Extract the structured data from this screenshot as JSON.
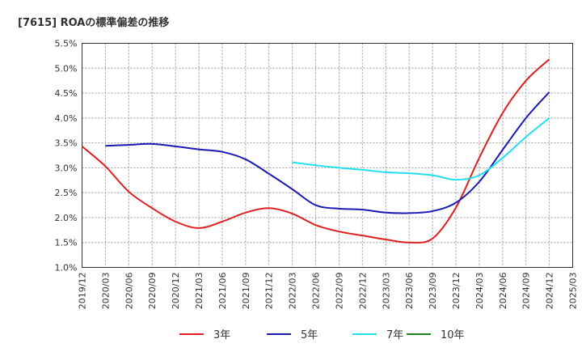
{
  "chart_data": {
    "type": "line",
    "title": "[7615]  ROAの標準偏差の推移",
    "xlabel": "",
    "ylabel": "",
    "x_ticks": [
      "2019/12",
      "2020/03",
      "2020/06",
      "2020/09",
      "2020/12",
      "2021/03",
      "2021/06",
      "2021/09",
      "2021/12",
      "2022/03",
      "2022/06",
      "2022/09",
      "2022/12",
      "2023/03",
      "2023/06",
      "2023/09",
      "2023/12",
      "2024/03",
      "2024/06",
      "2024/09",
      "2024/12",
      "2025/03"
    ],
    "y_ticks": [
      "1.0%",
      "1.5%",
      "2.0%",
      "2.5%",
      "3.0%",
      "3.5%",
      "4.0%",
      "4.5%",
      "5.0%",
      "5.5%"
    ],
    "ylim": [
      1.0,
      5.5
    ],
    "grid": true,
    "legend_position": "bottom",
    "series": [
      {
        "name": "3年",
        "color": "#e02020",
        "x": [
          "2019/12",
          "2020/03",
          "2020/06",
          "2020/09",
          "2020/12",
          "2021/03",
          "2021/06",
          "2021/09",
          "2021/12",
          "2022/03",
          "2022/06",
          "2022/09",
          "2022/12",
          "2023/03",
          "2023/06",
          "2023/09",
          "2023/12",
          "2024/03",
          "2024/06",
          "2024/09",
          "2024/12"
        ],
        "values": [
          3.43,
          3.03,
          2.52,
          2.19,
          1.92,
          1.79,
          1.92,
          2.1,
          2.19,
          2.08,
          1.85,
          1.72,
          1.64,
          1.56,
          1.5,
          1.58,
          2.2,
          3.2,
          4.1,
          4.75,
          5.18
        ]
      },
      {
        "name": "5年",
        "color": "#1a1ab4",
        "x": [
          "2020/03",
          "2020/06",
          "2020/09",
          "2020/12",
          "2021/03",
          "2021/06",
          "2021/09",
          "2021/12",
          "2022/03",
          "2022/06",
          "2022/09",
          "2022/12",
          "2023/03",
          "2023/06",
          "2023/09",
          "2023/12",
          "2024/03",
          "2024/06",
          "2024/09",
          "2024/12"
        ],
        "values": [
          3.44,
          3.46,
          3.48,
          3.43,
          3.37,
          3.32,
          3.17,
          2.88,
          2.57,
          2.25,
          2.18,
          2.16,
          2.1,
          2.09,
          2.13,
          2.3,
          2.72,
          3.36,
          4.0,
          4.52
        ]
      },
      {
        "name": "7年",
        "color": "#20e0f0",
        "x": [
          "2022/03",
          "2022/06",
          "2022/09",
          "2022/12",
          "2023/03",
          "2023/06",
          "2023/09",
          "2023/12",
          "2024/03",
          "2024/06",
          "2024/09",
          "2024/12"
        ],
        "values": [
          3.11,
          3.05,
          3.0,
          2.96,
          2.91,
          2.89,
          2.85,
          2.76,
          2.85,
          3.2,
          3.62,
          4.0
        ]
      },
      {
        "name": "10年",
        "color": "#208020",
        "x": [],
        "values": []
      }
    ]
  }
}
